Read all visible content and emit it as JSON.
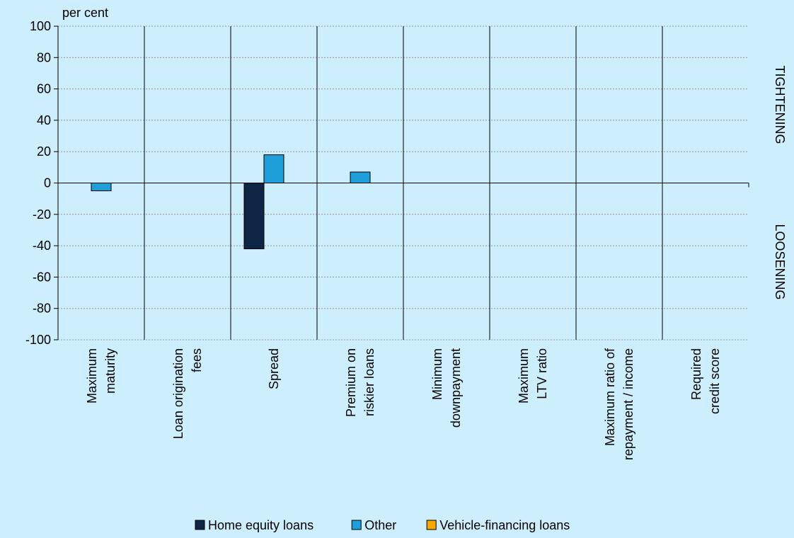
{
  "chart_data": {
    "type": "bar",
    "y_label": "per cent",
    "right_labels": [
      "TIGHTENING",
      "LOOSENING"
    ],
    "categories": [
      "Maximum\nmaturity",
      "Loan origination\nfees",
      "Spread",
      "Premium on\nriskier loans",
      "Minimum\ndownpayment",
      "Maximum\nLTV ratio",
      "Maximum ratio of\nrepayment / income",
      "Required\ncredit score"
    ],
    "series": [
      {
        "name": "Home equity loans",
        "color": "#0f2546",
        "values": [
          0,
          0,
          -42,
          0,
          0,
          0,
          0,
          0
        ]
      },
      {
        "name": "Other",
        "color": "#1f9fd9",
        "values": [
          -5,
          0,
          18,
          7,
          0,
          0,
          0,
          0
        ]
      },
      {
        "name": "Vehicle-financing loans",
        "color": "#f5a800",
        "values": [
          0,
          0,
          0,
          0,
          0,
          0,
          0,
          0
        ]
      }
    ],
    "ylim": [
      -100,
      100
    ],
    "yticks": [
      -100,
      -80,
      -60,
      -40,
      -20,
      0,
      20,
      40,
      60,
      80,
      100
    ],
    "grid": true
  }
}
